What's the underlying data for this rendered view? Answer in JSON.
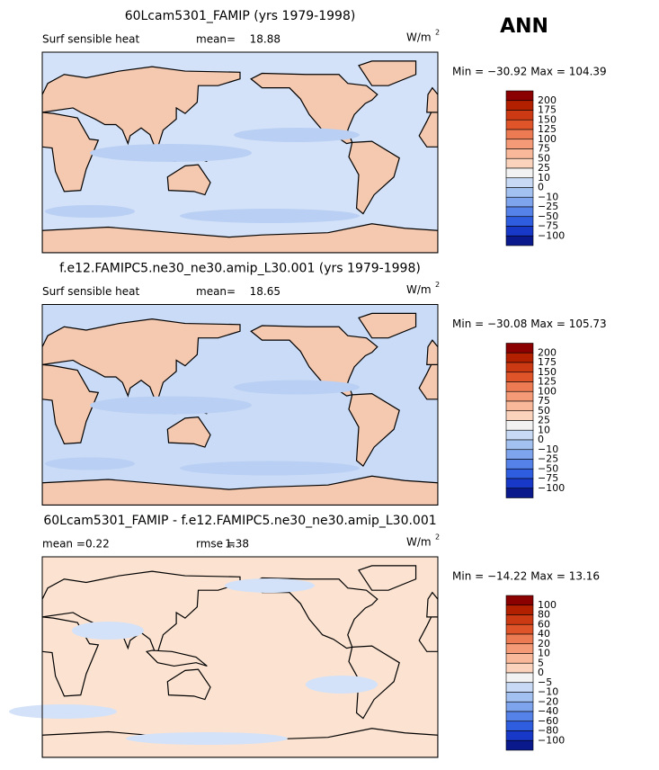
{
  "season": "ANN",
  "panels": [
    {
      "title": "60Lcam5301_FAMIP (yrs 1979-1998)",
      "variable": "Surf sensible heat",
      "stats": [
        {
          "label": "mean=",
          "value": "18.88"
        }
      ],
      "units": "W/m",
      "units_power": "2",
      "minmax": "Min = −30.92  Max = 104.39",
      "levels": [
        "200",
        "175",
        "150",
        "125",
        "100",
        "75",
        "50",
        "25",
        "10",
        "0",
        "−10",
        "−25",
        "−50",
        "−75",
        "−100"
      ],
      "colors": [
        "#8b0000",
        "#b22000",
        "#cc3a13",
        "#e0542a",
        "#ec7a52",
        "#f49a76",
        "#f8b899",
        "#fbd3bd",
        "#f2f2f2",
        "#c7d9f5",
        "#a3c1f0",
        "#7da4ec",
        "#5582e8",
        "#2f5de0",
        "#1838c8",
        "#0a1a8c"
      ]
    },
    {
      "title": "f.e12.FAMIPC5.ne30_ne30.amip_L30.001 (yrs 1979-1998)",
      "variable": "Surf sensible heat",
      "stats": [
        {
          "label": "mean=",
          "value": "18.65"
        }
      ],
      "units": "W/m",
      "units_power": "2",
      "minmax": "Min = −30.08  Max = 105.73",
      "levels": [
        "200",
        "175",
        "150",
        "125",
        "100",
        "75",
        "50",
        "25",
        "10",
        "0",
        "−10",
        "−25",
        "−50",
        "−75",
        "−100"
      ],
      "colors": [
        "#8b0000",
        "#b22000",
        "#cc3a13",
        "#e0542a",
        "#ec7a52",
        "#f49a76",
        "#f8b899",
        "#fbd3bd",
        "#f2f2f2",
        "#c7d9f5",
        "#a3c1f0",
        "#7da4ec",
        "#5582e8",
        "#2f5de0",
        "#1838c8",
        "#0a1a8c"
      ]
    },
    {
      "title": "60Lcam5301_FAMIP - f.e12.FAMIPC5.ne30_ne30.amip_L30.001",
      "variable": null,
      "stats": [
        {
          "label": "mean =",
          "value": "0.22"
        },
        {
          "label": "rmse =",
          "value": "1.38"
        }
      ],
      "units": "W/m",
      "units_power": "2",
      "minmax": "Min = −14.22  Max =  13.16",
      "levels": [
        "100",
        "80",
        "60",
        "40",
        "20",
        "10",
        "5",
        "0",
        "−5",
        "−10",
        "−20",
        "−40",
        "−60",
        "−80",
        "−100"
      ],
      "colors": [
        "#8b0000",
        "#b22000",
        "#cc3a13",
        "#e0542a",
        "#ec7a52",
        "#f49a76",
        "#f8b899",
        "#fbd3bd",
        "#f2f2f2",
        "#c7d9f5",
        "#a3c1f0",
        "#7da4ec",
        "#5582e8",
        "#2f5de0",
        "#1838c8",
        "#0a1a8c"
      ]
    }
  ]
}
